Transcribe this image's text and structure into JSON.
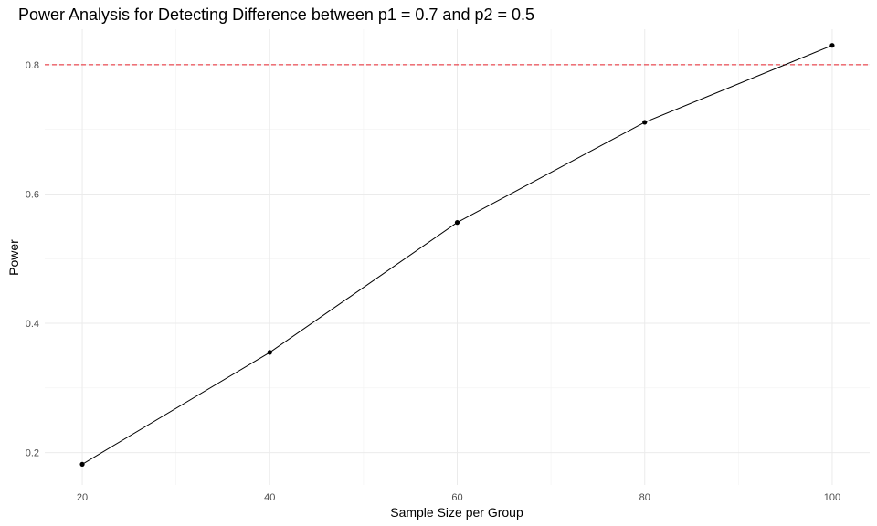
{
  "chart_data": {
    "type": "line",
    "title": "Power Analysis for Detecting Difference between p1 = 0.7 and p2 = 0.5",
    "xlabel": "Sample Size per Group",
    "ylabel": "Power",
    "x": [
      20,
      40,
      60,
      80,
      100
    ],
    "series": [
      {
        "values": [
          0.182,
          0.355,
          0.556,
          0.711,
          0.83
        ]
      }
    ],
    "xticks": [
      20,
      40,
      60,
      80,
      100
    ],
    "xtick_labels": [
      "20",
      "40",
      "60",
      "80",
      "100"
    ],
    "yticks": [
      0.2,
      0.4,
      0.6,
      0.8
    ],
    "ytick_labels": [
      "0.2",
      "0.4",
      "0.6",
      "0.8"
    ],
    "xlim": [
      16,
      104
    ],
    "ylim": [
      0.15,
      0.855
    ],
    "reference_line": {
      "y": 0.8,
      "color": "#e8212b",
      "style": "dashed"
    },
    "line_color": "#000000",
    "grid": true,
    "legend": "none"
  }
}
